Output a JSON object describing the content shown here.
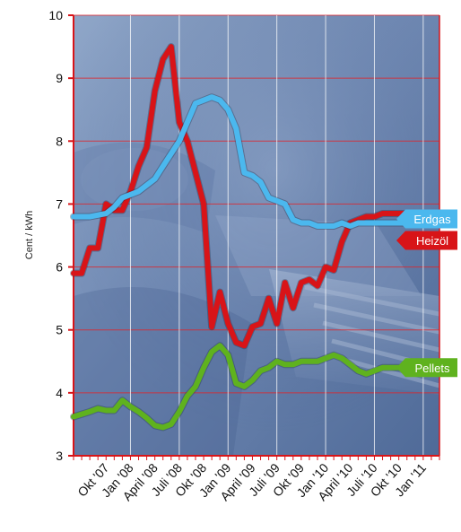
{
  "chart_data": {
    "type": "line",
    "ylabel": "Cent / kWh",
    "ylim": [
      3,
      10
    ],
    "yticks": [
      "3",
      "4",
      "5",
      "6",
      "7",
      "8",
      "9",
      "10"
    ],
    "categories": [
      "Okt '07",
      "Jan '08",
      "April '08",
      "Juli '08",
      "Okt '08",
      "Jan '09",
      "April '09",
      "Juli '09",
      "Okt '09",
      "Jan '10",
      "April '10",
      "Juli '10",
      "Okt '10",
      "Jan '11"
    ],
    "x_positions": [
      0,
      3,
      6,
      9,
      12,
      15,
      18,
      21,
      24,
      27,
      30,
      33,
      36,
      39
    ],
    "x_range": [
      -4,
      41
    ],
    "grid": true,
    "legend": "labels at right end of lines",
    "background": "photo of a heating boiler in blue tint",
    "series": [
      {
        "name": "Erdgas",
        "color": "#4bb8ee",
        "x": [
          -4,
          -2,
          0,
          1,
          2,
          3,
          4,
          5,
          6,
          7,
          8,
          9,
          10,
          11,
          12,
          13,
          14,
          15,
          16,
          17,
          18,
          19,
          20,
          21,
          22,
          23,
          24,
          25,
          26,
          27,
          28,
          29,
          30,
          31,
          32,
          33,
          34,
          35,
          36,
          37
        ],
        "values": [
          6.8,
          6.8,
          6.85,
          6.95,
          7.1,
          7.15,
          7.2,
          7.3,
          7.4,
          7.6,
          7.8,
          8.0,
          8.3,
          8.6,
          8.65,
          8.7,
          8.65,
          8.5,
          8.2,
          7.5,
          7.45,
          7.35,
          7.1,
          7.05,
          7.0,
          6.75,
          6.7,
          6.7,
          6.65,
          6.65,
          6.65,
          6.7,
          6.65,
          6.7,
          6.7,
          6.7,
          6.7,
          6.7,
          6.7,
          6.7
        ]
      },
      {
        "name": "Heizöl",
        "color": "#d81418",
        "x": [
          -4,
          -3,
          -2,
          -1,
          0,
          1,
          2,
          3,
          4,
          5,
          6,
          7,
          8,
          9,
          10,
          11,
          12,
          13,
          14,
          15,
          16,
          17,
          18,
          19,
          20,
          21,
          22,
          23,
          24,
          25,
          26,
          27,
          28,
          29,
          30,
          31,
          32,
          33,
          34,
          35,
          36,
          37
        ],
        "values": [
          5.9,
          5.9,
          6.3,
          6.3,
          7.0,
          6.9,
          6.9,
          7.2,
          7.6,
          7.9,
          8.8,
          9.3,
          9.5,
          8.3,
          8.0,
          7.5,
          7.0,
          5.05,
          5.6,
          5.1,
          4.8,
          4.75,
          5.05,
          5.1,
          5.5,
          5.1,
          5.75,
          5.35,
          5.75,
          5.8,
          5.7,
          6.0,
          5.95,
          6.4,
          6.7,
          6.75,
          6.8,
          6.8,
          6.85,
          6.85,
          6.85,
          6.85
        ]
      },
      {
        "name": "Pellets",
        "color": "#5fb21e",
        "x": [
          -4,
          -2,
          -1,
          0,
          1,
          2,
          3,
          4,
          5,
          6,
          7,
          8,
          9,
          10,
          11,
          12,
          13,
          14,
          15,
          16,
          17,
          18,
          19,
          20,
          21,
          22,
          23,
          24,
          25,
          26,
          27,
          28,
          29,
          30,
          31,
          32,
          33,
          34,
          35,
          36,
          37
        ],
        "values": [
          3.62,
          3.7,
          3.75,
          3.72,
          3.72,
          3.88,
          3.78,
          3.7,
          3.6,
          3.48,
          3.45,
          3.5,
          3.7,
          3.95,
          4.1,
          4.4,
          4.65,
          4.75,
          4.6,
          4.15,
          4.1,
          4.2,
          4.35,
          4.4,
          4.5,
          4.45,
          4.45,
          4.5,
          4.5,
          4.5,
          4.55,
          4.6,
          4.55,
          4.45,
          4.35,
          4.3,
          4.35,
          4.4,
          4.4,
          4.4,
          4.4
        ]
      }
    ]
  }
}
